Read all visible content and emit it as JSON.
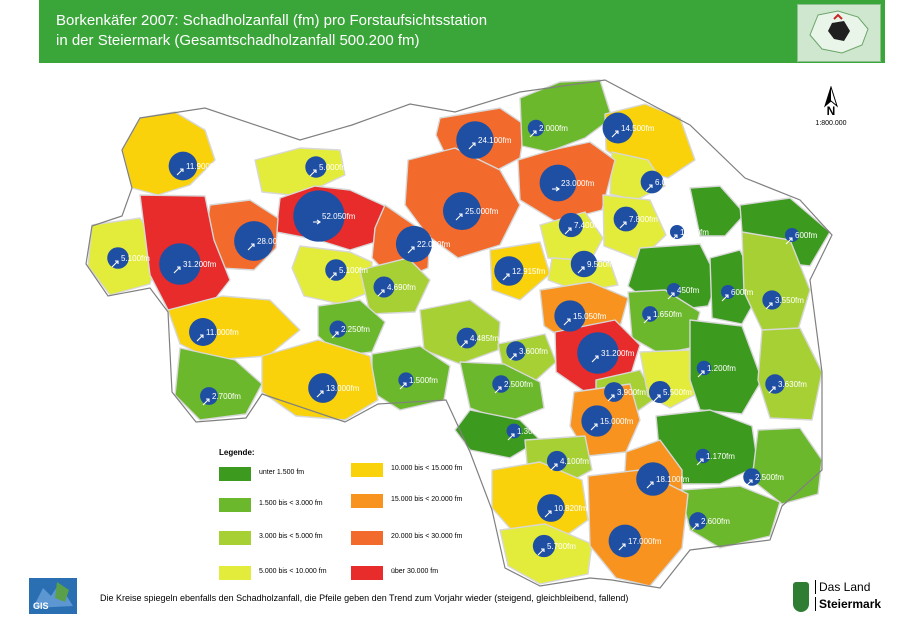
{
  "header": {
    "title_line1": "Borkenkäfer 2007: Schadholzanfall (fm) pro Forstaufsichtsstation",
    "title_line2": "in der Steiermark  (Gesamtschadholzanfall 500.200 fm)"
  },
  "compass": {
    "letter": "N",
    "scale": "1:800.000"
  },
  "legend": {
    "title": "Legende:",
    "items": [
      {
        "label": "unter  1.500 fm",
        "color": "#3c9a1e"
      },
      {
        "label": "1.500 bis <  3.000 fm",
        "color": "#6cb82c"
      },
      {
        "label": "3.000 bis <  5.000 fm",
        "color": "#a6d033"
      },
      {
        "label": "5.000 bis < 10.000 fm",
        "color": "#e3ec3a"
      },
      {
        "label": "10.000 bis < 15.000 fm",
        "color": "#f9d20c"
      },
      {
        "label": "15.000 bis < 20.000 fm",
        "color": "#f7931e"
      },
      {
        "label": "20.000 bis < 30.000 fm",
        "color": "#f26a2c"
      },
      {
        "label": "über 30.000 fm",
        "color": "#e82b2b"
      }
    ]
  },
  "stations": [
    {
      "label": "11.900fm",
      "value": 11900,
      "trend": "steigend"
    },
    {
      "label": "5.000fm",
      "value": 5000,
      "trend": "steigend"
    },
    {
      "label": "24.100fm",
      "value": 24100,
      "trend": "steigend"
    },
    {
      "label": "2.000fm",
      "value": 2000,
      "trend": "steigend"
    },
    {
      "label": "14.500fm",
      "value": 14500,
      "trend": "steigend"
    },
    {
      "label": "6.000fm",
      "value": 6000,
      "trend": "steigend"
    },
    {
      "label": "23.000fm",
      "value": 23000,
      "trend": "gleichbleibend"
    },
    {
      "label": "52.050fm",
      "value": 52050,
      "trend": "gleichbleibend"
    },
    {
      "label": "28.000fm",
      "value": 28000,
      "trend": "steigend"
    },
    {
      "label": "7.400fm",
      "value": 7400,
      "trend": "steigend"
    },
    {
      "label": "7.800fm",
      "value": 7800,
      "trend": "steigend"
    },
    {
      "label": "5.100fm",
      "value": 5100,
      "trend": "steigend"
    },
    {
      "label": "31.200fm",
      "value": 31200,
      "trend": "steigend"
    },
    {
      "label": "25.000fm",
      "value": 25000,
      "trend": "steigend"
    },
    {
      "label": "22.000fm",
      "value": 22000,
      "trend": "steigend"
    },
    {
      "label": "1.000fm",
      "value": 1000,
      "trend": "steigend"
    },
    {
      "label": "600fm",
      "value": 600,
      "trend": "steigend"
    },
    {
      "label": "5.100fm",
      "value": 5100,
      "trend": "steigend"
    },
    {
      "label": "12.915fm",
      "value": 12915,
      "trend": "steigend"
    },
    {
      "label": "9.500fm",
      "value": 9500,
      "trend": "steigend"
    },
    {
      "label": "4.690fm",
      "value": 4690,
      "trend": "steigend"
    },
    {
      "label": "450fm",
      "value": 450,
      "trend": "steigend"
    },
    {
      "label": "600fm",
      "value": 600,
      "trend": "steigend"
    },
    {
      "label": "3.550fm",
      "value": 3550,
      "trend": "steigend"
    },
    {
      "label": "11.000fm",
      "value": 11000,
      "trend": "steigend"
    },
    {
      "label": "2.250fm",
      "value": 2250,
      "trend": "steigend"
    },
    {
      "label": "15.050fm",
      "value": 15050,
      "trend": "steigend"
    },
    {
      "label": "1.650fm",
      "value": 1650,
      "trend": "steigend"
    },
    {
      "label": "4.485fm",
      "value": 4485,
      "trend": "steigend"
    },
    {
      "label": "3.600fm",
      "value": 3600,
      "trend": "steigend"
    },
    {
      "label": "31.200fm",
      "value": 31200,
      "trend": "steigend"
    },
    {
      "label": "1.500fm",
      "value": 1500,
      "trend": "steigend"
    },
    {
      "label": "2.500fm",
      "value": 2500,
      "trend": "steigend"
    },
    {
      "label": "3.900fm",
      "value": 3900,
      "trend": "steigend"
    },
    {
      "label": "5.500fm",
      "value": 5500,
      "trend": "steigend"
    },
    {
      "label": "1.200fm",
      "value": 1200,
      "trend": "steigend"
    },
    {
      "label": "3.630fm",
      "value": 3630,
      "trend": "steigend"
    },
    {
      "label": "2.700fm",
      "value": 2700,
      "trend": "steigend"
    },
    {
      "label": "13.000fm",
      "value": 13000,
      "trend": "steigend"
    },
    {
      "label": "15.000fm",
      "value": 15000,
      "trend": "steigend"
    },
    {
      "label": "1.300fm",
      "value": 1300,
      "trend": "steigend"
    },
    {
      "label": "4.100fm",
      "value": 4100,
      "trend": "steigend"
    },
    {
      "label": "1.170fm",
      "value": 1170,
      "trend": "steigend"
    },
    {
      "label": "18.100fm",
      "value": 18100,
      "trend": "steigend"
    },
    {
      "label": "2.500fm",
      "value": 2500,
      "trend": "steigend"
    },
    {
      "label": "10.820fm",
      "value": 10820,
      "trend": "steigend"
    },
    {
      "label": "2.600fm",
      "value": 2600,
      "trend": "steigend"
    },
    {
      "label": "5.700fm",
      "value": 5700,
      "trend": "steigend"
    },
    {
      "label": "17.000fm",
      "value": 17000,
      "trend": "steigend"
    }
  ],
  "footer": {
    "note": "Die Kreise spiegeln ebenfalls den Schadholzanfall, die Pfeile geben den Trend zum Vorjahr wieder (steigend, gleichbleibend, fallend)",
    "brand_line1": "Das Land",
    "brand_line2": "Steiermark",
    "gis_label": "GIS"
  }
}
